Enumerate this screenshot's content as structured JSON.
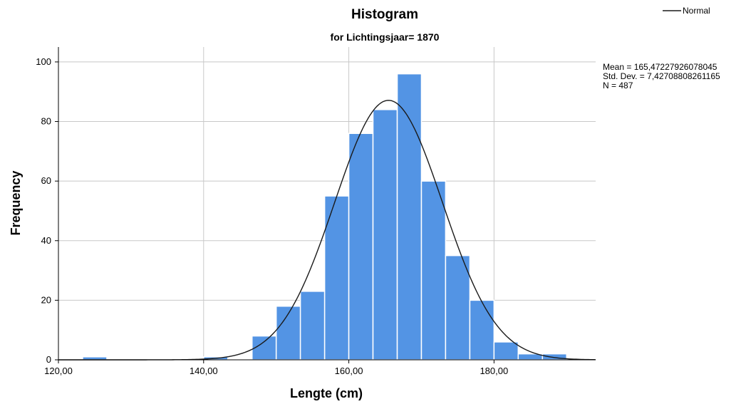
{
  "chart_data": {
    "type": "bar",
    "title": "Histogram",
    "subtitle": "for Lichtingsjaar= 1870",
    "xlabel": "Lengte (cm)",
    "ylabel": "Frequency",
    "xlim": [
      120,
      194
    ],
    "ylim": [
      0,
      105
    ],
    "x_ticks": [
      120,
      140,
      160,
      180
    ],
    "x_tick_labels": [
      "120,00",
      "140,00",
      "160,00",
      "180,00"
    ],
    "y_ticks": [
      0,
      20,
      40,
      60,
      80,
      100
    ],
    "y_tick_labels": [
      "0",
      "20",
      "40",
      "60",
      "80",
      "100"
    ],
    "grid": true,
    "bin_width": 3.33,
    "bins": [
      {
        "start": 123.33,
        "end": 126.67,
        "value": 1
      },
      {
        "start": 126.67,
        "end": 130.0,
        "value": 0
      },
      {
        "start": 130.0,
        "end": 133.33,
        "value": 0
      },
      {
        "start": 133.33,
        "end": 136.67,
        "value": 0
      },
      {
        "start": 136.67,
        "end": 140.0,
        "value": 0
      },
      {
        "start": 140.0,
        "end": 143.33,
        "value": 1
      },
      {
        "start": 143.33,
        "end": 146.67,
        "value": 0
      },
      {
        "start": 146.67,
        "end": 150.0,
        "value": 8
      },
      {
        "start": 150.0,
        "end": 153.33,
        "value": 18
      },
      {
        "start": 153.33,
        "end": 156.67,
        "value": 23
      },
      {
        "start": 156.67,
        "end": 160.0,
        "value": 55
      },
      {
        "start": 160.0,
        "end": 163.33,
        "value": 76
      },
      {
        "start": 163.33,
        "end": 166.67,
        "value": 84
      },
      {
        "start": 166.67,
        "end": 170.0,
        "value": 96
      },
      {
        "start": 170.0,
        "end": 173.33,
        "value": 60
      },
      {
        "start": 173.33,
        "end": 176.67,
        "value": 35
      },
      {
        "start": 176.67,
        "end": 180.0,
        "value": 20
      },
      {
        "start": 180.0,
        "end": 183.33,
        "value": 6
      },
      {
        "start": 183.33,
        "end": 186.67,
        "value": 2
      },
      {
        "start": 186.67,
        "end": 190.0,
        "value": 2
      }
    ],
    "normal_curve": {
      "mean": 165.47227926078045,
      "sd": 7.42708808261165,
      "n": 487
    },
    "legend": {
      "entries": [
        "Normal"
      ],
      "placement": "top-right"
    },
    "stats_text": [
      "Mean = 165,47227926078045",
      "Std. Dev. = 7,42708808261165",
      "N = 487"
    ],
    "colors": {
      "bar_fill": "#5394e4",
      "bar_stroke": "#ffffff",
      "grid": "#c8c8c8",
      "curve": "#1a1a1a",
      "axis": "#000000"
    }
  }
}
